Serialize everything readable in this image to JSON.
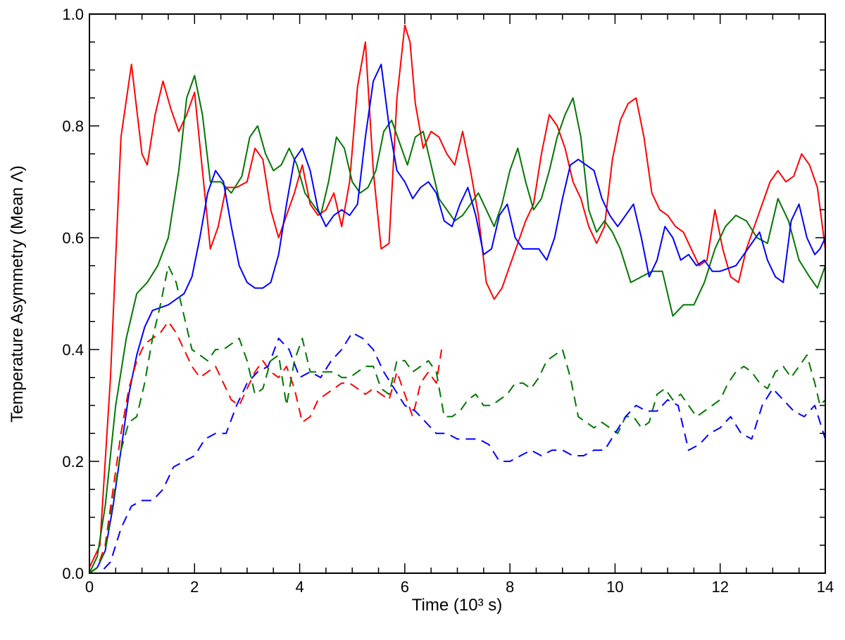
{
  "chart_data": {
    "type": "line",
    "xlabel": "Time (10³ s)",
    "ylabel": "Temperature Asymmetry (Mean Λ)",
    "xlim": [
      0,
      14
    ],
    "ylim": [
      0,
      1.0
    ],
    "x_ticks": [
      0,
      2,
      4,
      6,
      8,
      10,
      12,
      14
    ],
    "x_tick_labels": [
      "0",
      "2",
      "4",
      "6",
      "8",
      "10",
      "12",
      "14"
    ],
    "y_ticks": [
      0,
      0.2,
      0.4,
      0.6,
      0.8,
      1.0
    ],
    "y_tick_labels": [
      "0.0",
      "0.2",
      "0.4",
      "0.6",
      "0.8",
      "1.0"
    ],
    "grid": false,
    "legend": "none",
    "series": [
      {
        "color": "#ff0000",
        "dash": "solid",
        "x": [
          0,
          0.2,
          0.4,
          0.6,
          0.8,
          1.0,
          1.1,
          1.25,
          1.4,
          1.55,
          1.7,
          1.85,
          2.0,
          2.15,
          2.3,
          2.45,
          2.6,
          2.8,
          3.0,
          3.15,
          3.3,
          3.45,
          3.6,
          3.75,
          3.9,
          4.05,
          4.2,
          4.35,
          4.5,
          4.65,
          4.8,
          4.95,
          5.1,
          5.25,
          5.4,
          5.55,
          5.7,
          5.85,
          6.0,
          6.1,
          6.2,
          6.35,
          6.5,
          6.65,
          6.8,
          6.95,
          7.1,
          7.25,
          7.4,
          7.55,
          7.7,
          7.85,
          8.0,
          8.15,
          8.3,
          8.45,
          8.6,
          8.75,
          8.9,
          9.05,
          9.2,
          9.35,
          9.5,
          9.65,
          9.8,
          9.95,
          10.1,
          10.25,
          10.4,
          10.55,
          10.7,
          10.85,
          11.0,
          11.15,
          11.3,
          11.45,
          11.6,
          11.75,
          11.9,
          12.05,
          12.2,
          12.35,
          12.5,
          12.65,
          12.8,
          12.95,
          13.1,
          13.25,
          13.4,
          13.55,
          13.7,
          13.85,
          14.0
        ],
        "y": [
          0.01,
          0.05,
          0.35,
          0.78,
          0.91,
          0.75,
          0.73,
          0.82,
          0.88,
          0.83,
          0.79,
          0.82,
          0.86,
          0.72,
          0.58,
          0.62,
          0.69,
          0.69,
          0.7,
          0.76,
          0.74,
          0.65,
          0.6,
          0.64,
          0.68,
          0.73,
          0.66,
          0.64,
          0.65,
          0.68,
          0.62,
          0.7,
          0.87,
          0.95,
          0.72,
          0.58,
          0.59,
          0.85,
          0.98,
          0.95,
          0.84,
          0.76,
          0.79,
          0.78,
          0.75,
          0.73,
          0.79,
          0.72,
          0.64,
          0.52,
          0.49,
          0.51,
          0.55,
          0.59,
          0.63,
          0.66,
          0.75,
          0.82,
          0.8,
          0.76,
          0.7,
          0.67,
          0.62,
          0.59,
          0.62,
          0.74,
          0.81,
          0.84,
          0.85,
          0.78,
          0.68,
          0.65,
          0.64,
          0.62,
          0.61,
          0.58,
          0.55,
          0.56,
          0.65,
          0.58,
          0.53,
          0.52,
          0.58,
          0.62,
          0.66,
          0.7,
          0.72,
          0.7,
          0.71,
          0.75,
          0.73,
          0.69,
          0.58
        ]
      },
      {
        "color": "#007700",
        "dash": "solid",
        "x": [
          0,
          0.15,
          0.3,
          0.5,
          0.7,
          0.9,
          1.1,
          1.3,
          1.5,
          1.7,
          1.85,
          2.0,
          2.15,
          2.3,
          2.5,
          2.7,
          2.9,
          3.05,
          3.2,
          3.35,
          3.5,
          3.65,
          3.8,
          3.95,
          4.1,
          4.25,
          4.4,
          4.55,
          4.7,
          4.85,
          5.0,
          5.15,
          5.3,
          5.45,
          5.6,
          5.75,
          5.9,
          6.05,
          6.2,
          6.35,
          6.5,
          6.65,
          6.8,
          6.95,
          7.1,
          7.25,
          7.4,
          7.55,
          7.7,
          7.85,
          8.0,
          8.15,
          8.3,
          8.45,
          8.6,
          8.75,
          8.9,
          9.05,
          9.2,
          9.35,
          9.5,
          9.65,
          9.8,
          9.95,
          10.1,
          10.3,
          10.5,
          10.7,
          10.9,
          11.1,
          11.3,
          11.5,
          11.7,
          11.9,
          12.1,
          12.3,
          12.5,
          12.7,
          12.9,
          13.1,
          13.3,
          13.5,
          13.7,
          13.85,
          14.0
        ],
        "y": [
          0.0,
          0.03,
          0.12,
          0.3,
          0.42,
          0.5,
          0.52,
          0.55,
          0.6,
          0.72,
          0.85,
          0.89,
          0.82,
          0.7,
          0.7,
          0.68,
          0.71,
          0.78,
          0.8,
          0.75,
          0.72,
          0.73,
          0.76,
          0.73,
          0.68,
          0.66,
          0.64,
          0.7,
          0.78,
          0.76,
          0.7,
          0.68,
          0.69,
          0.72,
          0.79,
          0.81,
          0.77,
          0.73,
          0.78,
          0.79,
          0.73,
          0.67,
          0.65,
          0.63,
          0.64,
          0.66,
          0.68,
          0.65,
          0.62,
          0.66,
          0.72,
          0.76,
          0.7,
          0.65,
          0.67,
          0.72,
          0.78,
          0.82,
          0.85,
          0.78,
          0.65,
          0.61,
          0.63,
          0.61,
          0.58,
          0.52,
          0.53,
          0.54,
          0.54,
          0.46,
          0.48,
          0.48,
          0.52,
          0.58,
          0.62,
          0.64,
          0.63,
          0.6,
          0.59,
          0.67,
          0.63,
          0.56,
          0.53,
          0.51,
          0.55
        ]
      },
      {
        "color": "#0000ff",
        "dash": "solid",
        "x": [
          0,
          0.15,
          0.3,
          0.45,
          0.6,
          0.75,
          0.9,
          1.05,
          1.2,
          1.35,
          1.5,
          1.65,
          1.8,
          1.95,
          2.1,
          2.25,
          2.4,
          2.55,
          2.7,
          2.85,
          3.0,
          3.15,
          3.3,
          3.45,
          3.6,
          3.75,
          3.9,
          4.05,
          4.2,
          4.35,
          4.5,
          4.65,
          4.8,
          4.95,
          5.1,
          5.25,
          5.4,
          5.55,
          5.7,
          5.85,
          6.0,
          6.15,
          6.3,
          6.45,
          6.6,
          6.75,
          6.9,
          7.05,
          7.2,
          7.35,
          7.5,
          7.65,
          7.8,
          7.95,
          8.1,
          8.25,
          8.4,
          8.55,
          8.7,
          8.85,
          9.0,
          9.15,
          9.3,
          9.45,
          9.6,
          9.75,
          9.9,
          10.05,
          10.2,
          10.35,
          10.5,
          10.65,
          10.8,
          10.95,
          11.1,
          11.25,
          11.4,
          11.55,
          11.7,
          11.85,
          12.0,
          12.15,
          12.3,
          12.45,
          12.6,
          12.75,
          12.9,
          13.05,
          13.2,
          13.35,
          13.5,
          13.65,
          13.8,
          13.9,
          14.0
        ],
        "y": [
          0.0,
          0.01,
          0.04,
          0.12,
          0.22,
          0.32,
          0.39,
          0.44,
          0.47,
          0.475,
          0.48,
          0.49,
          0.5,
          0.53,
          0.6,
          0.68,
          0.72,
          0.7,
          0.62,
          0.55,
          0.52,
          0.51,
          0.51,
          0.52,
          0.57,
          0.66,
          0.74,
          0.76,
          0.72,
          0.65,
          0.62,
          0.64,
          0.65,
          0.64,
          0.66,
          0.78,
          0.88,
          0.91,
          0.8,
          0.72,
          0.7,
          0.67,
          0.69,
          0.7,
          0.68,
          0.63,
          0.62,
          0.66,
          0.69,
          0.64,
          0.57,
          0.58,
          0.64,
          0.66,
          0.6,
          0.58,
          0.58,
          0.58,
          0.56,
          0.6,
          0.67,
          0.73,
          0.74,
          0.73,
          0.72,
          0.67,
          0.64,
          0.62,
          0.64,
          0.66,
          0.6,
          0.53,
          0.56,
          0.62,
          0.6,
          0.56,
          0.57,
          0.55,
          0.56,
          0.54,
          0.54,
          0.545,
          0.55,
          0.57,
          0.59,
          0.61,
          0.56,
          0.53,
          0.52,
          0.63,
          0.66,
          0.6,
          0.57,
          0.58,
          0.6
        ]
      },
      {
        "color": "#ff0000",
        "dash": "dashed",
        "x": [
          0,
          0.15,
          0.3,
          0.45,
          0.6,
          0.75,
          0.9,
          1.05,
          1.2,
          1.35,
          1.5,
          1.65,
          1.8,
          1.95,
          2.1,
          2.25,
          2.4,
          2.55,
          2.7,
          2.85,
          3.0,
          3.15,
          3.3,
          3.45,
          3.6,
          3.75,
          3.9,
          4.05,
          4.2,
          4.35,
          4.5,
          4.65,
          4.8,
          4.95,
          5.1,
          5.25,
          5.4,
          5.55,
          5.7,
          5.85,
          6.0,
          6.15,
          6.3,
          6.45,
          6.6,
          6.7
        ],
        "y": [
          0.0,
          0.01,
          0.05,
          0.15,
          0.25,
          0.33,
          0.38,
          0.41,
          0.42,
          0.43,
          0.45,
          0.43,
          0.4,
          0.37,
          0.35,
          0.36,
          0.37,
          0.34,
          0.31,
          0.3,
          0.33,
          0.36,
          0.38,
          0.36,
          0.35,
          0.37,
          0.33,
          0.27,
          0.28,
          0.31,
          0.32,
          0.33,
          0.34,
          0.34,
          0.33,
          0.32,
          0.33,
          0.32,
          0.31,
          0.36,
          0.32,
          0.28,
          0.34,
          0.36,
          0.34,
          0.4
        ]
      },
      {
        "color": "#007700",
        "dash": "dashed",
        "x": [
          0,
          0.15,
          0.3,
          0.45,
          0.6,
          0.75,
          0.9,
          1.05,
          1.2,
          1.35,
          1.5,
          1.65,
          1.8,
          1.95,
          2.1,
          2.25,
          2.4,
          2.55,
          2.7,
          2.85,
          3.0,
          3.15,
          3.3,
          3.45,
          3.6,
          3.75,
          3.9,
          4.05,
          4.2,
          4.35,
          4.5,
          4.65,
          4.8,
          4.95,
          5.1,
          5.25,
          5.4,
          5.55,
          5.7,
          5.85,
          6.0,
          6.15,
          6.3,
          6.45,
          6.6,
          6.75,
          6.9,
          7.05,
          7.2,
          7.35,
          7.5,
          7.65,
          7.8,
          7.95,
          8.1,
          8.25,
          8.4,
          8.55,
          8.7,
          8.85,
          9.0,
          9.15,
          9.3,
          9.45,
          9.6,
          9.75,
          9.9,
          10.05,
          10.2,
          10.35,
          10.5,
          10.65,
          10.8,
          10.95,
          11.1,
          11.25,
          11.4,
          11.55,
          11.7,
          11.85,
          12.0,
          12.15,
          12.3,
          12.45,
          12.6,
          12.75,
          12.9,
          13.05,
          13.2,
          13.35,
          13.5,
          13.65,
          13.8,
          13.9,
          14.0
        ],
        "y": [
          0.0,
          0.01,
          0.04,
          0.13,
          0.22,
          0.27,
          0.28,
          0.34,
          0.42,
          0.48,
          0.55,
          0.52,
          0.46,
          0.4,
          0.39,
          0.38,
          0.4,
          0.4,
          0.41,
          0.42,
          0.38,
          0.32,
          0.33,
          0.38,
          0.39,
          0.3,
          0.38,
          0.42,
          0.36,
          0.36,
          0.36,
          0.36,
          0.35,
          0.35,
          0.36,
          0.37,
          0.37,
          0.33,
          0.32,
          0.38,
          0.38,
          0.36,
          0.37,
          0.38,
          0.36,
          0.28,
          0.28,
          0.29,
          0.31,
          0.32,
          0.3,
          0.3,
          0.31,
          0.32,
          0.34,
          0.34,
          0.33,
          0.35,
          0.38,
          0.39,
          0.4,
          0.35,
          0.28,
          0.27,
          0.26,
          0.27,
          0.26,
          0.25,
          0.28,
          0.28,
          0.26,
          0.27,
          0.32,
          0.33,
          0.31,
          0.32,
          0.3,
          0.28,
          0.29,
          0.3,
          0.31,
          0.34,
          0.36,
          0.37,
          0.36,
          0.34,
          0.33,
          0.36,
          0.37,
          0.35,
          0.37,
          0.39,
          0.34,
          0.3,
          0.31
        ]
      },
      {
        "color": "#0000ff",
        "dash": "dashed",
        "x": [
          0,
          0.2,
          0.4,
          0.6,
          0.8,
          1.0,
          1.2,
          1.4,
          1.6,
          1.8,
          2.0,
          2.2,
          2.4,
          2.6,
          2.8,
          3.0,
          3.2,
          3.4,
          3.6,
          3.8,
          4.0,
          4.2,
          4.4,
          4.6,
          4.8,
          5.0,
          5.2,
          5.4,
          5.6,
          5.8,
          6.0,
          6.2,
          6.4,
          6.6,
          6.8,
          7.0,
          7.2,
          7.4,
          7.6,
          7.8,
          8.0,
          8.2,
          8.4,
          8.6,
          8.8,
          9.0,
          9.2,
          9.4,
          9.6,
          9.8,
          10.0,
          10.2,
          10.4,
          10.6,
          10.8,
          11.0,
          11.2,
          11.4,
          11.6,
          11.8,
          12.0,
          12.2,
          12.4,
          12.6,
          12.8,
          13.0,
          13.2,
          13.4,
          13.6,
          13.8,
          14.0
        ],
        "y": [
          0.0,
          0.0,
          0.02,
          0.08,
          0.12,
          0.13,
          0.13,
          0.15,
          0.19,
          0.2,
          0.21,
          0.24,
          0.25,
          0.25,
          0.3,
          0.34,
          0.36,
          0.37,
          0.42,
          0.4,
          0.35,
          0.36,
          0.35,
          0.38,
          0.4,
          0.43,
          0.42,
          0.4,
          0.36,
          0.33,
          0.3,
          0.29,
          0.27,
          0.25,
          0.25,
          0.24,
          0.24,
          0.24,
          0.23,
          0.2,
          0.2,
          0.21,
          0.22,
          0.21,
          0.22,
          0.22,
          0.21,
          0.21,
          0.22,
          0.22,
          0.25,
          0.28,
          0.3,
          0.29,
          0.29,
          0.31,
          0.3,
          0.22,
          0.23,
          0.25,
          0.26,
          0.28,
          0.25,
          0.24,
          0.3,
          0.33,
          0.31,
          0.29,
          0.28,
          0.3,
          0.24
        ]
      }
    ]
  }
}
